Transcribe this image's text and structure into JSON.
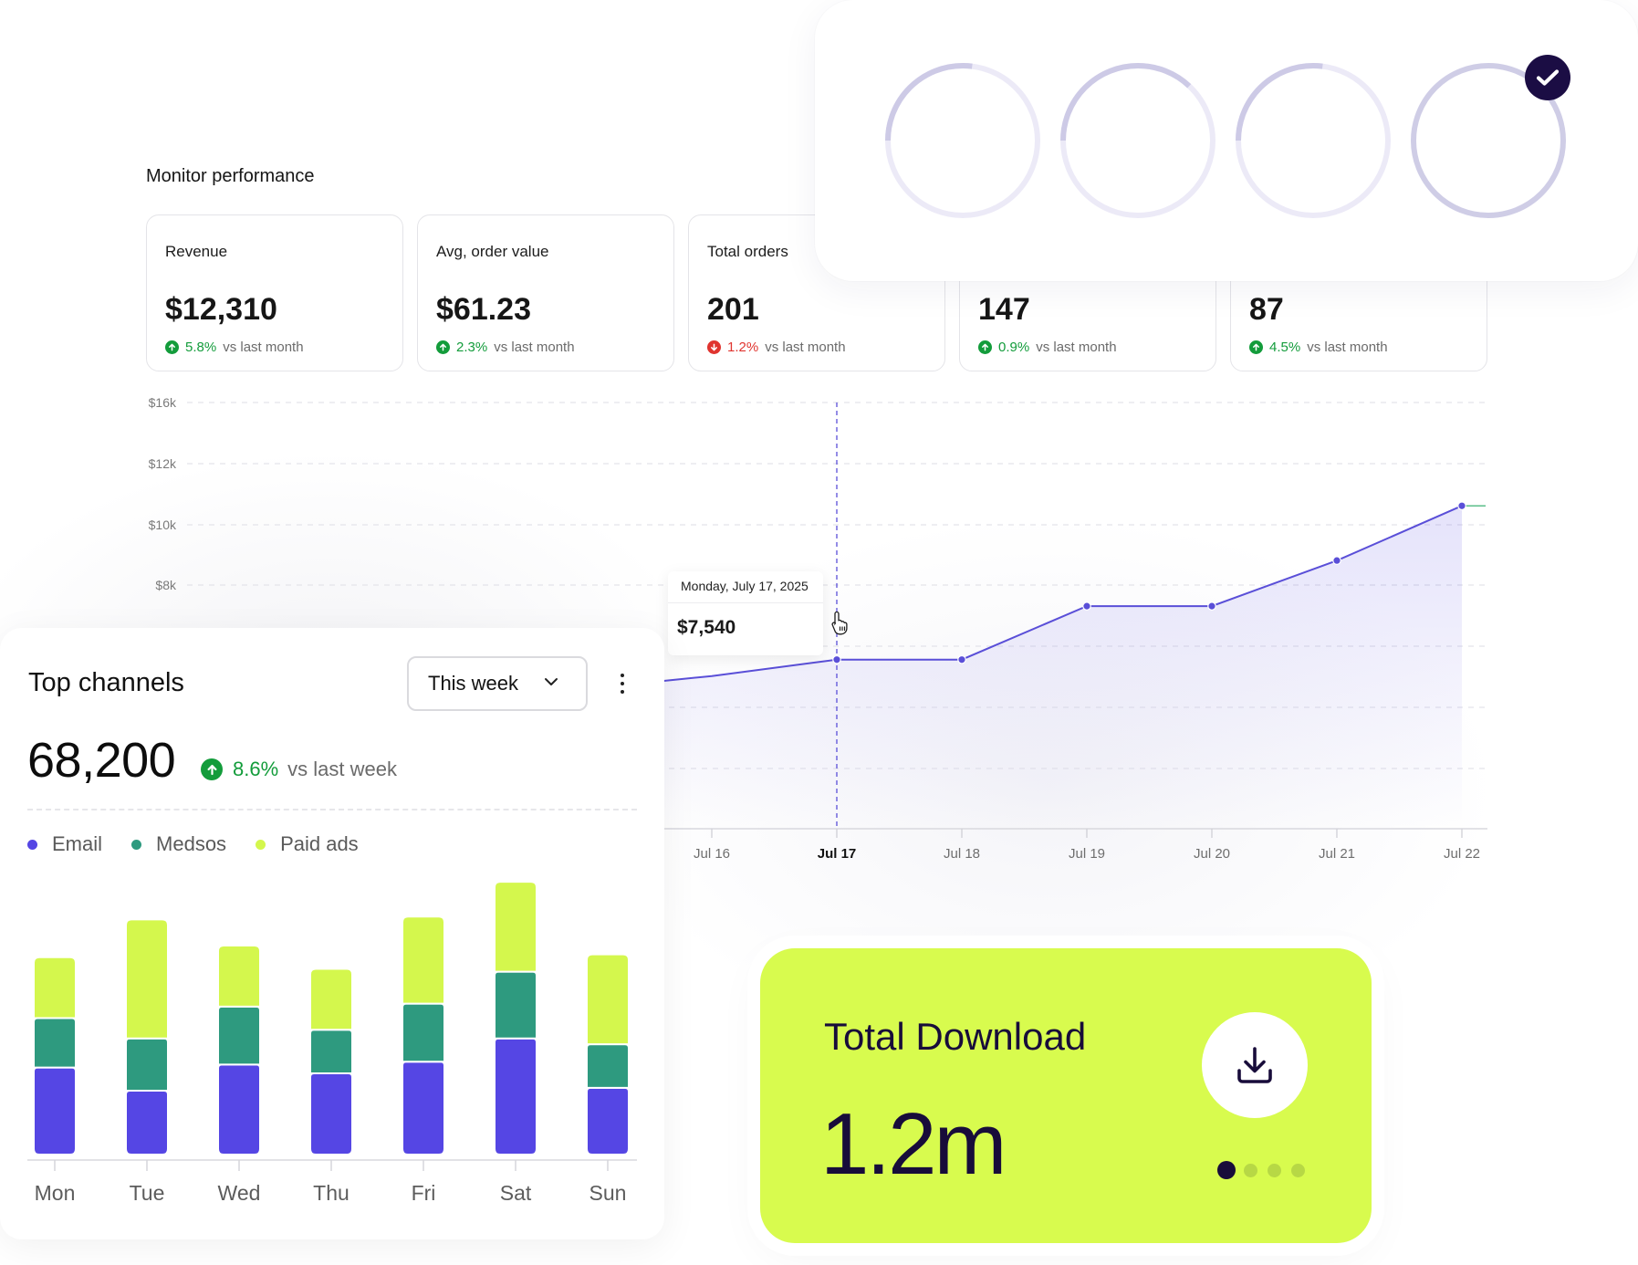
{
  "monitor": {
    "title": "Monitor performance",
    "kpis": [
      {
        "label": "Revenue",
        "value": "$12,310",
        "change": "5.8%",
        "direction": "up",
        "suffix": "vs last month"
      },
      {
        "label": "Avg, order value",
        "value": "$61.23",
        "change": "2.3%",
        "direction": "up",
        "suffix": "vs last month"
      },
      {
        "label": "Total orders",
        "value": "201",
        "change": "1.2%",
        "direction": "down",
        "suffix": "vs last month"
      },
      {
        "label": "",
        "value": "147",
        "change": "0.9%",
        "direction": "up",
        "suffix": "vs last month"
      },
      {
        "label": "",
        "value": "87",
        "change": "4.5%",
        "direction": "up",
        "suffix": "vs last month"
      }
    ],
    "tooltip": {
      "date": "Monday, July 17, 2025",
      "value": "$7,540"
    }
  },
  "chart_data": [
    {
      "type": "line",
      "title": "",
      "xlabel": "",
      "ylabel": "",
      "x": [
        "Jul 16",
        "Jul 17",
        "Jul 18",
        "Jul 19",
        "Jul 20",
        "Jul 21",
        "Jul 22"
      ],
      "series": [
        {
          "values": [
            7000,
            7540,
            7540,
            9300,
            9300,
            10800,
            12600
          ],
          "color": "#5a4fd8"
        }
      ],
      "y_ticks": [
        "$16k",
        "$12k",
        "$10k",
        "$8k"
      ],
      "highlight_x": "Jul 17",
      "grid": true
    },
    {
      "type": "bar",
      "stacked": true,
      "title": "Top channels",
      "categories": [
        "Mon",
        "Tue",
        "Wed",
        "Thu",
        "Fri",
        "Sat",
        "Sun"
      ],
      "series": [
        {
          "name": "Email",
          "color": "#5546e4",
          "values": [
            30,
            22,
            31,
            28,
            32,
            40,
            23
          ]
        },
        {
          "name": "Medsos",
          "color": "#2e9a7f",
          "values": [
            17,
            18,
            20,
            15,
            20,
            23,
            15
          ]
        },
        {
          "name": "Paid ads",
          "color": "#d4f74d",
          "values": [
            21,
            41,
            21,
            21,
            30,
            31,
            31
          ]
        }
      ],
      "grid": false
    }
  ],
  "rings": [
    {
      "progress": 0.27,
      "icon": "ring-progress"
    },
    {
      "progress": 0.37,
      "icon": "ring-progress"
    },
    {
      "progress": 0.27,
      "icon": "ring-progress"
    },
    {
      "progress": 1.0,
      "icon": "ring-progress-complete"
    }
  ],
  "channels": {
    "title": "Top channels",
    "period": "This week",
    "total": "68,200",
    "change": "8.6%",
    "change_suffix": "vs last week",
    "legend": [
      {
        "label": "Email",
        "color": "#5546e4"
      },
      {
        "label": "Medsos",
        "color": "#2e9a7f"
      },
      {
        "label": "Paid ads",
        "color": "#d4f74d"
      }
    ]
  },
  "download": {
    "title": "Total Download",
    "value": "1.2m",
    "pager_total": 4,
    "pager_active": 0,
    "icon": "download-icon"
  },
  "colors": {
    "accent": "#5a4fd8",
    "lime": "#d8fb4e",
    "navy": "#180c3a",
    "positive": "#139c3b",
    "negative": "#e0342f"
  }
}
